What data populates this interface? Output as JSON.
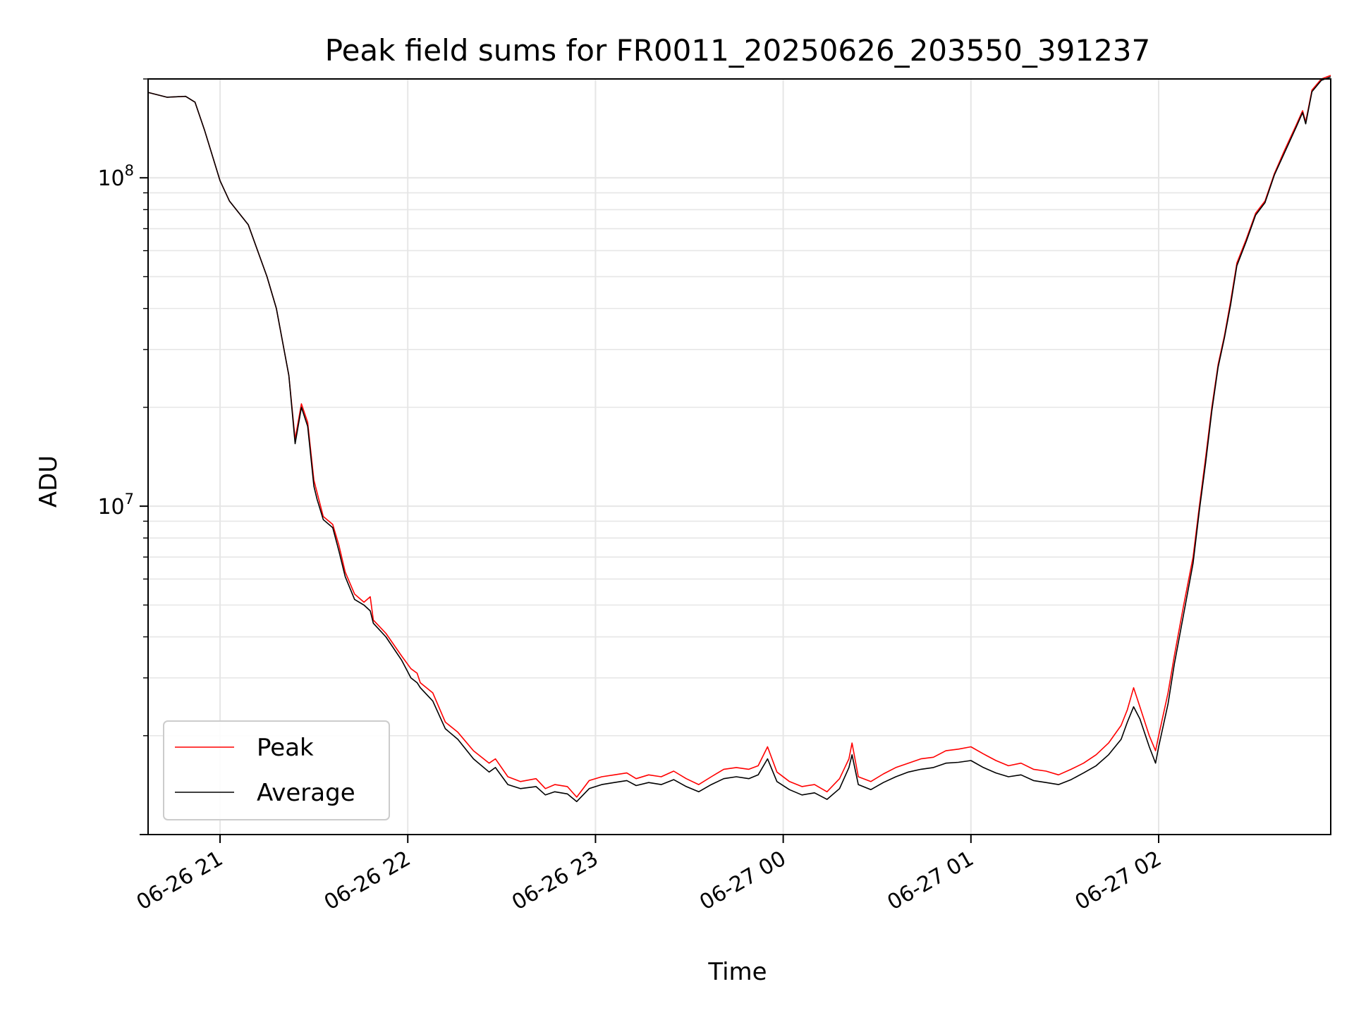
{
  "chart_data": {
    "type": "line",
    "title": "Peak field sums for FR0011_20250626_203550_391237",
    "xlabel": "Time",
    "ylabel": "ADU",
    "yscale": "log",
    "ylim": [
      1000000,
      200000000
    ],
    "xlim": [
      "2025-06-26 20:37",
      "2025-06-27 02:55"
    ],
    "xticks": [
      {
        "t": "2025-06-26 21:00",
        "label": "06-26 21"
      },
      {
        "t": "2025-06-26 22:00",
        "label": "06-26 22"
      },
      {
        "t": "2025-06-26 23:00",
        "label": "06-26 23"
      },
      {
        "t": "2025-06-27 00:00",
        "label": "06-27 00"
      },
      {
        "t": "2025-06-27 01:00",
        "label": "06-27 01"
      },
      {
        "t": "2025-06-27 02:00",
        "label": "06-27 02"
      }
    ],
    "yticks": [
      {
        "v": 10000000,
        "base": "10",
        "exp": "7"
      },
      {
        "v": 100000000,
        "base": "10",
        "exp": "8"
      }
    ],
    "grid": true,
    "legend_position": "lower-left",
    "series": [
      {
        "name": "Peak",
        "color": "#ff0000",
        "points": [
          [
            "2025-06-26 20:37",
            182000000
          ],
          [
            "2025-06-26 20:43",
            176000000
          ],
          [
            "2025-06-26 20:49",
            177000000
          ],
          [
            "2025-06-26 20:52",
            170000000
          ],
          [
            "2025-06-26 20:55",
            140000000
          ],
          [
            "2025-06-26 21:00",
            98000000
          ],
          [
            "2025-06-26 21:03",
            85000000
          ],
          [
            "2025-06-26 21:09",
            72000000
          ],
          [
            "2025-06-26 21:12",
            60000000
          ],
          [
            "2025-06-26 21:15",
            50000000
          ],
          [
            "2025-06-26 21:18",
            40000000
          ],
          [
            "2025-06-26 21:22",
            25000000
          ],
          [
            "2025-06-26 21:24",
            16000000
          ],
          [
            "2025-06-26 21:26",
            20500000
          ],
          [
            "2025-06-26 21:28",
            18000000
          ],
          [
            "2025-06-26 21:30",
            12000000
          ],
          [
            "2025-06-26 21:31",
            11000000
          ],
          [
            "2025-06-26 21:33",
            9300000
          ],
          [
            "2025-06-26 21:36",
            8800000
          ],
          [
            "2025-06-26 21:38",
            7600000
          ],
          [
            "2025-06-26 21:40",
            6300000
          ],
          [
            "2025-06-26 21:43",
            5400000
          ],
          [
            "2025-06-26 21:46",
            5100000
          ],
          [
            "2025-06-26 21:48",
            5300000
          ],
          [
            "2025-06-26 21:49",
            4500000
          ],
          [
            "2025-06-26 21:53",
            4100000
          ],
          [
            "2025-06-26 21:58",
            3500000
          ],
          [
            "2025-06-26 22:01",
            3200000
          ],
          [
            "2025-06-26 22:03",
            3100000
          ],
          [
            "2025-06-26 22:04",
            2900000
          ],
          [
            "2025-06-26 22:08",
            2700000
          ],
          [
            "2025-06-26 22:12",
            2200000
          ],
          [
            "2025-06-26 22:16",
            2050000
          ],
          [
            "2025-06-26 22:21",
            1800000
          ],
          [
            "2025-06-26 22:26",
            1650000
          ],
          [
            "2025-06-26 22:28",
            1700000
          ],
          [
            "2025-06-26 22:32",
            1500000
          ],
          [
            "2025-06-26 22:36",
            1450000
          ],
          [
            "2025-06-26 22:41",
            1480000
          ],
          [
            "2025-06-26 22:44",
            1380000
          ],
          [
            "2025-06-26 22:47",
            1420000
          ],
          [
            "2025-06-26 22:51",
            1400000
          ],
          [
            "2025-06-26 22:54",
            1300000
          ],
          [
            "2025-06-26 22:58",
            1460000
          ],
          [
            "2025-06-26 23:02",
            1500000
          ],
          [
            "2025-06-26 23:06",
            1520000
          ],
          [
            "2025-06-26 23:10",
            1540000
          ],
          [
            "2025-06-26 23:13",
            1480000
          ],
          [
            "2025-06-26 23:17",
            1520000
          ],
          [
            "2025-06-26 23:21",
            1500000
          ],
          [
            "2025-06-26 23:25",
            1560000
          ],
          [
            "2025-06-26 23:29",
            1480000
          ],
          [
            "2025-06-26 23:33",
            1420000
          ],
          [
            "2025-06-26 23:37",
            1500000
          ],
          [
            "2025-06-26 23:41",
            1580000
          ],
          [
            "2025-06-26 23:45",
            1600000
          ],
          [
            "2025-06-26 23:49",
            1580000
          ],
          [
            "2025-06-26 23:52",
            1620000
          ],
          [
            "2025-06-26 23:55",
            1850000
          ],
          [
            "2025-06-26 23:58",
            1550000
          ],
          [
            "2025-06-27 00:02",
            1450000
          ],
          [
            "2025-06-27 00:06",
            1400000
          ],
          [
            "2025-06-27 00:10",
            1420000
          ],
          [
            "2025-06-27 00:14",
            1350000
          ],
          [
            "2025-06-27 00:18",
            1480000
          ],
          [
            "2025-06-27 00:21",
            1700000
          ],
          [
            "2025-06-27 00:22",
            1900000
          ],
          [
            "2025-06-27 00:24",
            1500000
          ],
          [
            "2025-06-27 00:28",
            1450000
          ],
          [
            "2025-06-27 00:32",
            1530000
          ],
          [
            "2025-06-27 00:36",
            1600000
          ],
          [
            "2025-06-27 00:40",
            1650000
          ],
          [
            "2025-06-27 00:44",
            1700000
          ],
          [
            "2025-06-27 00:48",
            1720000
          ],
          [
            "2025-06-27 00:52",
            1800000
          ],
          [
            "2025-06-27 00:56",
            1820000
          ],
          [
            "2025-06-27 01:00",
            1850000
          ],
          [
            "2025-06-27 01:04",
            1760000
          ],
          [
            "2025-06-27 01:08",
            1680000
          ],
          [
            "2025-06-27 01:12",
            1620000
          ],
          [
            "2025-06-27 01:16",
            1650000
          ],
          [
            "2025-06-27 01:20",
            1580000
          ],
          [
            "2025-06-27 01:24",
            1560000
          ],
          [
            "2025-06-27 01:28",
            1520000
          ],
          [
            "2025-06-27 01:32",
            1580000
          ],
          [
            "2025-06-27 01:36",
            1650000
          ],
          [
            "2025-06-27 01:40",
            1750000
          ],
          [
            "2025-06-27 01:44",
            1900000
          ],
          [
            "2025-06-27 01:48",
            2150000
          ],
          [
            "2025-06-27 01:50",
            2400000
          ],
          [
            "2025-06-27 01:52",
            2800000
          ],
          [
            "2025-06-27 01:54",
            2450000
          ],
          [
            "2025-06-27 01:57",
            2000000
          ],
          [
            "2025-06-27 01:59",
            1800000
          ],
          [
            "2025-06-27 02:00",
            2000000
          ],
          [
            "2025-06-27 02:03",
            2700000
          ],
          [
            "2025-06-27 02:05",
            3500000
          ],
          [
            "2025-06-27 02:08",
            5000000
          ],
          [
            "2025-06-27 02:11",
            7000000
          ],
          [
            "2025-06-27 02:13",
            10000000
          ],
          [
            "2025-06-27 02:15",
            14000000
          ],
          [
            "2025-06-27 02:17",
            20000000
          ],
          [
            "2025-06-27 02:19",
            27000000
          ],
          [
            "2025-06-27 02:21",
            33000000
          ],
          [
            "2025-06-27 02:23",
            42000000
          ],
          [
            "2025-06-27 02:25",
            55000000
          ],
          [
            "2025-06-27 02:28",
            65000000
          ],
          [
            "2025-06-27 02:31",
            78000000
          ],
          [
            "2025-06-27 02:34",
            85000000
          ],
          [
            "2025-06-27 02:37",
            103000000
          ],
          [
            "2025-06-27 02:40",
            120000000
          ],
          [
            "2025-06-27 02:44",
            145000000
          ],
          [
            "2025-06-27 02:46",
            160000000
          ],
          [
            "2025-06-27 02:47",
            148000000
          ],
          [
            "2025-06-27 02:49",
            185000000
          ],
          [
            "2025-06-27 02:52",
            200000000
          ],
          [
            "2025-06-27 02:55",
            205000000
          ]
        ]
      },
      {
        "name": "Average",
        "color": "#000000",
        "points": [
          [
            "2025-06-26 20:37",
            182000000
          ],
          [
            "2025-06-26 20:43",
            176000000
          ],
          [
            "2025-06-26 20:49",
            177000000
          ],
          [
            "2025-06-26 20:52",
            170000000
          ],
          [
            "2025-06-26 20:55",
            140000000
          ],
          [
            "2025-06-26 21:00",
            98000000
          ],
          [
            "2025-06-26 21:03",
            85000000
          ],
          [
            "2025-06-26 21:09",
            72000000
          ],
          [
            "2025-06-26 21:12",
            60000000
          ],
          [
            "2025-06-26 21:15",
            50000000
          ],
          [
            "2025-06-26 21:18",
            40000000
          ],
          [
            "2025-06-26 21:22",
            25000000
          ],
          [
            "2025-06-26 21:24",
            15500000
          ],
          [
            "2025-06-26 21:26",
            20000000
          ],
          [
            "2025-06-26 21:28",
            17500000
          ],
          [
            "2025-06-26 21:30",
            11500000
          ],
          [
            "2025-06-26 21:31",
            10500000
          ],
          [
            "2025-06-26 21:33",
            9100000
          ],
          [
            "2025-06-26 21:36",
            8600000
          ],
          [
            "2025-06-26 21:38",
            7300000
          ],
          [
            "2025-06-26 21:40",
            6100000
          ],
          [
            "2025-06-26 21:43",
            5200000
          ],
          [
            "2025-06-26 21:46",
            5000000
          ],
          [
            "2025-06-26 21:48",
            4800000
          ],
          [
            "2025-06-26 21:49",
            4400000
          ],
          [
            "2025-06-26 21:53",
            4000000
          ],
          [
            "2025-06-26 21:58",
            3400000
          ],
          [
            "2025-06-26 22:01",
            3000000
          ],
          [
            "2025-06-26 22:03",
            2900000
          ],
          [
            "2025-06-26 22:04",
            2800000
          ],
          [
            "2025-06-26 22:08",
            2550000
          ],
          [
            "2025-06-26 22:12",
            2100000
          ],
          [
            "2025-06-26 22:16",
            1950000
          ],
          [
            "2025-06-26 22:21",
            1700000
          ],
          [
            "2025-06-26 22:26",
            1550000
          ],
          [
            "2025-06-26 22:28",
            1600000
          ],
          [
            "2025-06-26 22:32",
            1420000
          ],
          [
            "2025-06-26 22:36",
            1380000
          ],
          [
            "2025-06-26 22:41",
            1400000
          ],
          [
            "2025-06-26 22:44",
            1320000
          ],
          [
            "2025-06-26 22:47",
            1350000
          ],
          [
            "2025-06-26 22:51",
            1330000
          ],
          [
            "2025-06-26 22:54",
            1260000
          ],
          [
            "2025-06-26 22:58",
            1380000
          ],
          [
            "2025-06-26 23:02",
            1420000
          ],
          [
            "2025-06-26 23:06",
            1440000
          ],
          [
            "2025-06-26 23:10",
            1460000
          ],
          [
            "2025-06-26 23:13",
            1410000
          ],
          [
            "2025-06-26 23:17",
            1440000
          ],
          [
            "2025-06-26 23:21",
            1420000
          ],
          [
            "2025-06-26 23:25",
            1470000
          ],
          [
            "2025-06-26 23:29",
            1400000
          ],
          [
            "2025-06-26 23:33",
            1350000
          ],
          [
            "2025-06-26 23:37",
            1420000
          ],
          [
            "2025-06-26 23:41",
            1480000
          ],
          [
            "2025-06-26 23:45",
            1500000
          ],
          [
            "2025-06-26 23:49",
            1480000
          ],
          [
            "2025-06-26 23:52",
            1520000
          ],
          [
            "2025-06-26 23:55",
            1700000
          ],
          [
            "2025-06-26 23:58",
            1450000
          ],
          [
            "2025-06-27 00:02",
            1370000
          ],
          [
            "2025-06-27 00:06",
            1320000
          ],
          [
            "2025-06-27 00:10",
            1340000
          ],
          [
            "2025-06-27 00:14",
            1280000
          ],
          [
            "2025-06-27 00:18",
            1380000
          ],
          [
            "2025-06-27 00:21",
            1600000
          ],
          [
            "2025-06-27 00:22",
            1750000
          ],
          [
            "2025-06-27 00:24",
            1420000
          ],
          [
            "2025-06-27 00:28",
            1370000
          ],
          [
            "2025-06-27 00:32",
            1440000
          ],
          [
            "2025-06-27 00:36",
            1500000
          ],
          [
            "2025-06-27 00:40",
            1550000
          ],
          [
            "2025-06-27 00:44",
            1580000
          ],
          [
            "2025-06-27 00:48",
            1600000
          ],
          [
            "2025-06-27 00:52",
            1650000
          ],
          [
            "2025-06-27 00:56",
            1660000
          ],
          [
            "2025-06-27 01:00",
            1680000
          ],
          [
            "2025-06-27 01:04",
            1600000
          ],
          [
            "2025-06-27 01:08",
            1540000
          ],
          [
            "2025-06-27 01:12",
            1500000
          ],
          [
            "2025-06-27 01:16",
            1520000
          ],
          [
            "2025-06-27 01:20",
            1460000
          ],
          [
            "2025-06-27 01:24",
            1440000
          ],
          [
            "2025-06-27 01:28",
            1420000
          ],
          [
            "2025-06-27 01:32",
            1470000
          ],
          [
            "2025-06-27 01:36",
            1540000
          ],
          [
            "2025-06-27 01:40",
            1620000
          ],
          [
            "2025-06-27 01:44",
            1750000
          ],
          [
            "2025-06-27 01:48",
            1950000
          ],
          [
            "2025-06-27 01:50",
            2200000
          ],
          [
            "2025-06-27 01:52",
            2450000
          ],
          [
            "2025-06-27 01:54",
            2250000
          ],
          [
            "2025-06-27 01:57",
            1850000
          ],
          [
            "2025-06-27 01:59",
            1650000
          ],
          [
            "2025-06-27 02:00",
            1850000
          ],
          [
            "2025-06-27 02:03",
            2500000
          ],
          [
            "2025-06-27 02:05",
            3300000
          ],
          [
            "2025-06-27 02:08",
            4700000
          ],
          [
            "2025-06-27 02:11",
            6700000
          ],
          [
            "2025-06-27 02:13",
            9700000
          ],
          [
            "2025-06-27 02:15",
            13500000
          ],
          [
            "2025-06-27 02:17",
            19500000
          ],
          [
            "2025-06-27 02:19",
            26500000
          ],
          [
            "2025-06-27 02:21",
            32500000
          ],
          [
            "2025-06-27 02:23",
            41000000
          ],
          [
            "2025-06-27 02:25",
            54000000
          ],
          [
            "2025-06-27 02:28",
            64000000
          ],
          [
            "2025-06-27 02:31",
            77000000
          ],
          [
            "2025-06-27 02:34",
            84000000
          ],
          [
            "2025-06-27 02:37",
            102000000
          ],
          [
            "2025-06-27 02:40",
            118000000
          ],
          [
            "2025-06-27 02:44",
            143000000
          ],
          [
            "2025-06-27 02:46",
            158000000
          ],
          [
            "2025-06-27 02:47",
            146000000
          ],
          [
            "2025-06-27 02:49",
            183000000
          ],
          [
            "2025-06-27 02:52",
            198000000
          ],
          [
            "2025-06-27 02:55",
            203000000
          ]
        ]
      }
    ]
  }
}
